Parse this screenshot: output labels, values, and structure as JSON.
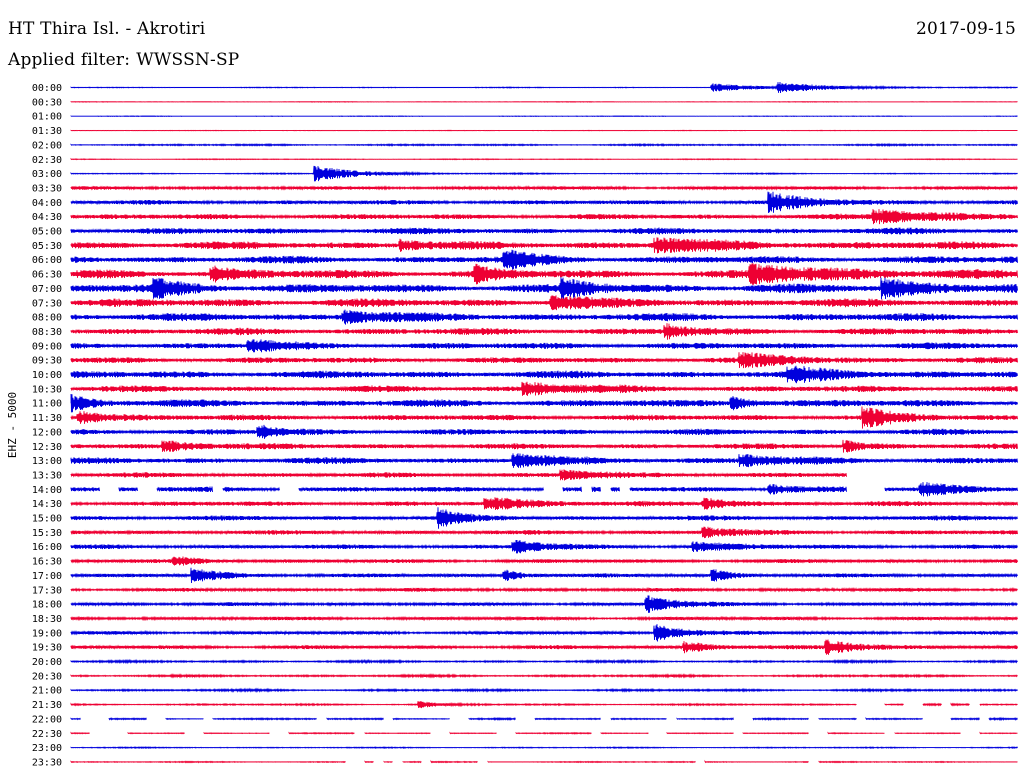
{
  "header": {
    "station": "HT Thira Isl. - Akrotiri",
    "date": "2017-09-15",
    "filter_label": "Applied filter:",
    "filter_value": "WWSSN-SP"
  },
  "chart_data": {
    "type": "helicorder",
    "channel_label": "EHZ - 5000",
    "row_labels": [
      "00:00",
      "00:30",
      "01:00",
      "01:30",
      "02:00",
      "02:30",
      "03:00",
      "03:30",
      "04:00",
      "04:30",
      "05:00",
      "05:30",
      "06:00",
      "06:30",
      "07:00",
      "07:30",
      "08:00",
      "08:30",
      "09:00",
      "09:30",
      "10:00",
      "10:30",
      "11:00",
      "11:30",
      "12:00",
      "12:30",
      "13:00",
      "13:30",
      "14:00",
      "14:30",
      "15:00",
      "15:30",
      "16:00",
      "16:30",
      "17:00",
      "17:30",
      "18:00",
      "18:30",
      "19:00",
      "19:30",
      "20:00",
      "20:30",
      "21:00",
      "21:30",
      "22:00",
      "22:30",
      "23:00",
      "23:30"
    ],
    "row_colors": [
      "#0000dd",
      "#ee0033"
    ],
    "noise_levels": [
      0.3,
      0.2,
      0.2,
      0.2,
      0.6,
      0.3,
      0.4,
      1.4,
      1.8,
      2.2,
      2.6,
      3.2,
      3.0,
      3.4,
      3.6,
      3.4,
      3.2,
      2.8,
      2.6,
      2.4,
      3.0,
      2.6,
      3.0,
      2.4,
      2.4,
      2.2,
      2.6,
      2.0,
      2.2,
      2.0,
      2.0,
      1.8,
      1.8,
      1.6,
      1.6,
      1.4,
      1.4,
      1.4,
      1.4,
      1.6,
      0.8,
      0.8,
      0.8,
      0.6,
      0.6,
      0.4,
      0.4,
      0.4
    ],
    "events": [
      {
        "row": 0,
        "t": 0.68,
        "amp": 4,
        "dur": 0.04
      },
      {
        "row": 0,
        "t": 0.75,
        "amp": 5,
        "dur": 0.05
      },
      {
        "row": 6,
        "t": 0.26,
        "amp": 8,
        "dur": 0.04
      },
      {
        "row": 8,
        "t": 0.74,
        "amp": 9,
        "dur": 0.04
      },
      {
        "row": 9,
        "t": 0.85,
        "amp": 6,
        "dur": 0.08
      },
      {
        "row": 11,
        "t": 0.35,
        "amp": 5,
        "dur": 0.02
      },
      {
        "row": 11,
        "t": 0.62,
        "amp": 6,
        "dur": 0.06
      },
      {
        "row": 12,
        "t": 0.46,
        "amp": 8,
        "dur": 0.03
      },
      {
        "row": 13,
        "t": 0.15,
        "amp": 6,
        "dur": 0.03
      },
      {
        "row": 13,
        "t": 0.43,
        "amp": 7,
        "dur": 0.02
      },
      {
        "row": 13,
        "t": 0.72,
        "amp": 7,
        "dur": 0.1
      },
      {
        "row": 14,
        "t": 0.09,
        "amp": 8,
        "dur": 0.03
      },
      {
        "row": 14,
        "t": 0.52,
        "amp": 8,
        "dur": 0.03
      },
      {
        "row": 14,
        "t": 0.86,
        "amp": 8,
        "dur": 0.05
      },
      {
        "row": 15,
        "t": 0.51,
        "amp": 7,
        "dur": 0.03
      },
      {
        "row": 16,
        "t": 0.29,
        "amp": 6,
        "dur": 0.04
      },
      {
        "row": 17,
        "t": 0.63,
        "amp": 6,
        "dur": 0.02
      },
      {
        "row": 18,
        "t": 0.19,
        "amp": 6,
        "dur": 0.03
      },
      {
        "row": 19,
        "t": 0.71,
        "amp": 6,
        "dur": 0.05
      },
      {
        "row": 20,
        "t": 0.76,
        "amp": 6,
        "dur": 0.05
      },
      {
        "row": 21,
        "t": 0.48,
        "amp": 6,
        "dur": 0.05
      },
      {
        "row": 22,
        "t": 0.0,
        "amp": 7,
        "dur": 0.02
      },
      {
        "row": 22,
        "t": 0.7,
        "amp": 6,
        "dur": 0.02
      },
      {
        "row": 23,
        "t": 0.01,
        "amp": 6,
        "dur": 0.03
      },
      {
        "row": 23,
        "t": 0.84,
        "amp": 9,
        "dur": 0.03
      },
      {
        "row": 24,
        "t": 0.2,
        "amp": 6,
        "dur": 0.02
      },
      {
        "row": 25,
        "t": 0.1,
        "amp": 5,
        "dur": 0.04
      },
      {
        "row": 25,
        "t": 0.82,
        "amp": 5,
        "dur": 0.02
      },
      {
        "row": 26,
        "t": 0.47,
        "amp": 6,
        "dur": 0.04
      },
      {
        "row": 26,
        "t": 0.71,
        "amp": 5,
        "dur": 0.04
      },
      {
        "row": 27,
        "t": 0.52,
        "amp": 4,
        "dur": 0.04
      },
      {
        "row": 28,
        "t": 0.74,
        "amp": 5,
        "dur": 0.02
      },
      {
        "row": 28,
        "t": 0.9,
        "amp": 6,
        "dur": 0.04
      },
      {
        "row": 29,
        "t": 0.44,
        "amp": 6,
        "dur": 0.05
      },
      {
        "row": 29,
        "t": 0.67,
        "amp": 5,
        "dur": 0.03
      },
      {
        "row": 30,
        "t": 0.39,
        "amp": 9,
        "dur": 0.02
      },
      {
        "row": 31,
        "t": 0.67,
        "amp": 5,
        "dur": 0.03
      },
      {
        "row": 32,
        "t": 0.47,
        "amp": 6,
        "dur": 0.03
      },
      {
        "row": 32,
        "t": 0.66,
        "amp": 4,
        "dur": 0.04
      },
      {
        "row": 33,
        "t": 0.11,
        "amp": 4,
        "dur": 0.03
      },
      {
        "row": 34,
        "t": 0.13,
        "amp": 6,
        "dur": 0.03
      },
      {
        "row": 34,
        "t": 0.46,
        "amp": 5,
        "dur": 0.02
      },
      {
        "row": 34,
        "t": 0.68,
        "amp": 5,
        "dur": 0.02
      },
      {
        "row": 36,
        "t": 0.61,
        "amp": 8,
        "dur": 0.03
      },
      {
        "row": 38,
        "t": 0.62,
        "amp": 8,
        "dur": 0.03
      },
      {
        "row": 39,
        "t": 0.65,
        "amp": 5,
        "dur": 0.03
      },
      {
        "row": 39,
        "t": 0.8,
        "amp": 6,
        "dur": 0.04
      },
      {
        "row": 43,
        "t": 0.37,
        "amp": 3,
        "dur": 0.02
      }
    ],
    "gaps": [
      {
        "row": 27,
        "from": 0.82,
        "to": 1.0
      },
      {
        "row": 28,
        "from": 0.03,
        "to": 0.05
      },
      {
        "row": 28,
        "from": 0.07,
        "to": 0.09
      },
      {
        "row": 28,
        "from": 0.15,
        "to": 0.16
      },
      {
        "row": 28,
        "from": 0.22,
        "to": 0.24
      },
      {
        "row": 28,
        "from": 0.5,
        "to": 0.52
      },
      {
        "row": 28,
        "from": 0.54,
        "to": 0.55
      },
      {
        "row": 28,
        "from": 0.56,
        "to": 0.57
      },
      {
        "row": 28,
        "from": 0.58,
        "to": 0.59
      },
      {
        "row": 28,
        "from": 0.82,
        "to": 0.86
      },
      {
        "row": 43,
        "from": 0.83,
        "to": 0.86
      },
      {
        "row": 43,
        "from": 0.88,
        "to": 0.9
      },
      {
        "row": 43,
        "from": 0.92,
        "to": 0.93
      },
      {
        "row": 43,
        "from": 0.95,
        "to": 0.96
      },
      {
        "row": 44,
        "from": 0.01,
        "to": 0.04
      },
      {
        "row": 44,
        "from": 0.08,
        "to": 0.1
      },
      {
        "row": 44,
        "from": 0.14,
        "to": 0.15
      },
      {
        "row": 44,
        "from": 0.26,
        "to": 0.27
      },
      {
        "row": 44,
        "from": 0.33,
        "to": 0.34
      },
      {
        "row": 44,
        "from": 0.4,
        "to": 0.42
      },
      {
        "row": 44,
        "from": 0.47,
        "to": 0.49
      },
      {
        "row": 44,
        "from": 0.56,
        "to": 0.57
      },
      {
        "row": 44,
        "from": 0.63,
        "to": 0.64
      },
      {
        "row": 44,
        "from": 0.7,
        "to": 0.72
      },
      {
        "row": 44,
        "from": 0.78,
        "to": 0.79
      },
      {
        "row": 44,
        "from": 0.83,
        "to": 0.84
      },
      {
        "row": 44,
        "from": 0.9,
        "to": 0.93
      },
      {
        "row": 44,
        "from": 0.96,
        "to": 0.97
      },
      {
        "row": 45,
        "from": 0.02,
        "to": 0.06
      },
      {
        "row": 45,
        "from": 0.12,
        "to": 0.14
      },
      {
        "row": 45,
        "from": 0.21,
        "to": 0.23
      },
      {
        "row": 45,
        "from": 0.3,
        "to": 0.31
      },
      {
        "row": 45,
        "from": 0.38,
        "to": 0.4
      },
      {
        "row": 45,
        "from": 0.45,
        "to": 0.47
      },
      {
        "row": 45,
        "from": 0.55,
        "to": 0.56
      },
      {
        "row": 45,
        "from": 0.61,
        "to": 0.63
      },
      {
        "row": 45,
        "from": 0.7,
        "to": 0.71
      },
      {
        "row": 45,
        "from": 0.78,
        "to": 0.8
      },
      {
        "row": 45,
        "from": 0.86,
        "to": 0.87
      },
      {
        "row": 45,
        "from": 0.94,
        "to": 0.96
      },
      {
        "row": 47,
        "from": 0.29,
        "to": 0.31
      },
      {
        "row": 47,
        "from": 0.32,
        "to": 0.33
      },
      {
        "row": 47,
        "from": 0.34,
        "to": 0.35
      },
      {
        "row": 47,
        "from": 0.37,
        "to": 0.38
      },
      {
        "row": 47,
        "from": 0.43,
        "to": 0.44
      },
      {
        "row": 47,
        "from": 0.66,
        "to": 0.67
      },
      {
        "row": 47,
        "from": 0.78,
        "to": 0.79
      }
    ]
  }
}
